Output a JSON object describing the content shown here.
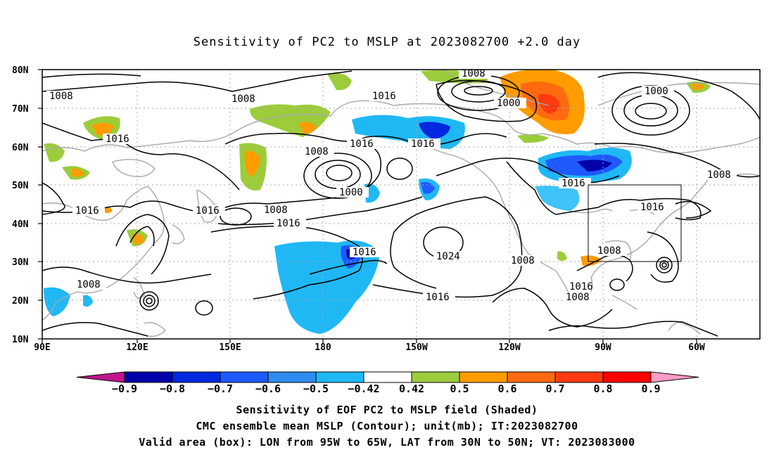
{
  "title": "Sensitivity of PC2 to MSLP at 2023082700 +2.0 day",
  "axes": {
    "lat_labels": [
      "80N",
      "70N",
      "60N",
      "50N",
      "40N",
      "30N",
      "20N",
      "10N"
    ],
    "lon_labels": [
      "90E",
      "120E",
      "150E",
      "180",
      "150W",
      "120W",
      "90W",
      "60W"
    ]
  },
  "colorbar": {
    "labels": [
      "−0.9",
      "−0.8",
      "−0.7",
      "−0.6",
      "−0.5",
      "−0.42",
      "0.42",
      "0.5",
      "0.6",
      "0.7",
      "0.8",
      "0.9"
    ],
    "colors": [
      "#0000a8",
      "#0028e0",
      "#1e5aff",
      "#2e8cf0",
      "#1fb8f5",
      "#ffffff",
      "#9ccc3a",
      "#ff9c00",
      "#ff6a10",
      "#ff3a10",
      "#ff0000"
    ],
    "under_color": "#c0148c",
    "over_color": "#ff9cc8"
  },
  "contour_labels": [
    {
      "text": "1008"
    },
    {
      "text": "1008"
    },
    {
      "text": "1016"
    },
    {
      "text": "1008"
    },
    {
      "text": "1000"
    },
    {
      "text": "1000"
    },
    {
      "text": "1016"
    },
    {
      "text": "1016"
    },
    {
      "text": "1016"
    },
    {
      "text": "1008"
    },
    {
      "text": "1000"
    },
    {
      "text": "1016"
    },
    {
      "text": "1016"
    },
    {
      "text": "1008"
    },
    {
      "text": "1016"
    },
    {
      "text": "1016"
    },
    {
      "text": "1016"
    },
    {
      "text": "1024"
    },
    {
      "text": "1008"
    },
    {
      "text": "1008"
    },
    {
      "text": "1016"
    },
    {
      "text": "1008"
    },
    {
      "text": "1008"
    },
    {
      "text": "1016"
    },
    {
      "text": "1008"
    },
    {
      "text": "1016"
    }
  ],
  "captions": {
    "line1": "Sensitivity of EOF PC2 to MSLP field (Shaded)",
    "line2": "CMC ensemble mean MSLP (Contour); unit(mb); IT:2023082700",
    "line3": "Valid area (box): LON from 95W to 65W, LAT from 30N to 50N; VT: 2023083000"
  }
}
